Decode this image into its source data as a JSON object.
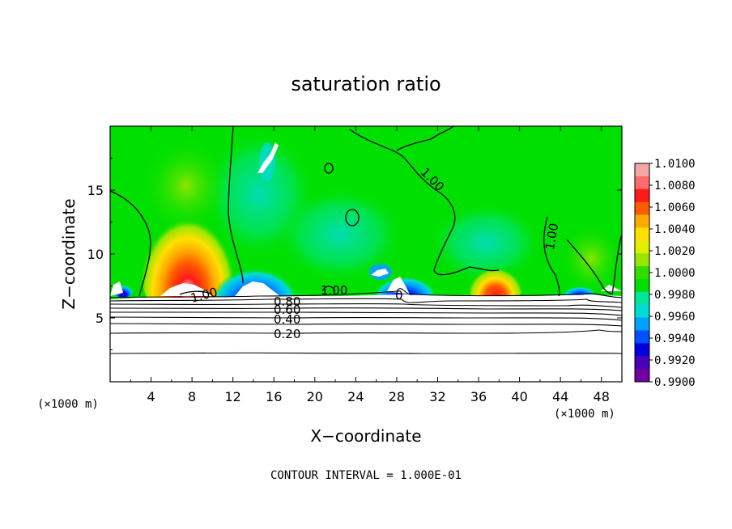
{
  "chart_data": {
    "type": "heatmap",
    "title": "saturation ratio",
    "xlabel": "X−coordinate",
    "ylabel": "Z−coordinate",
    "x_unit": "(×1000 m)",
    "y_unit": "(×1000 m)",
    "xlim": [
      0,
      50
    ],
    "ylim": [
      0,
      20
    ],
    "x_ticks": [
      4,
      8,
      12,
      16,
      20,
      24,
      28,
      32,
      36,
      40,
      44,
      48
    ],
    "y_ticks": [
      5,
      10,
      15
    ],
    "colorbar": {
      "levels": [
        "1.0100",
        "1.0080",
        "1.0060",
        "1.0040",
        "1.0020",
        "1.0000",
        "0.9980",
        "0.9960",
        "0.9940",
        "0.9920",
        "0.9900"
      ],
      "colors": [
        "#f4a6a6",
        "#ff6a6a",
        "#ff1a1a",
        "#ff5a00",
        "#ffaa00",
        "#ffe000",
        "#e0f000",
        "#9ae600",
        "#33dd00",
        "#00e000",
        "#00e69a",
        "#00dcd4",
        "#00a0ff",
        "#0050ff",
        "#0000dd",
        "#4a00b4",
        "#7000a0"
      ]
    },
    "contour_labels": [
      "1.00",
      "1.00",
      "1.00",
      "1.00",
      "0",
      "0.80",
      "0.60",
      "0.40",
      "0.20"
    ],
    "hotspots": [
      {
        "x": 8,
        "z": 9,
        "value": 1.01
      },
      {
        "x": 14,
        "z": 8,
        "value": 0.99
      },
      {
        "x": 38,
        "z": 7.6,
        "value": 1.008
      },
      {
        "x": 27,
        "z": 7.4,
        "value": 0.992
      }
    ],
    "contour_interval_text": "CONTOUR INTERVAL = 1.000E-01"
  }
}
